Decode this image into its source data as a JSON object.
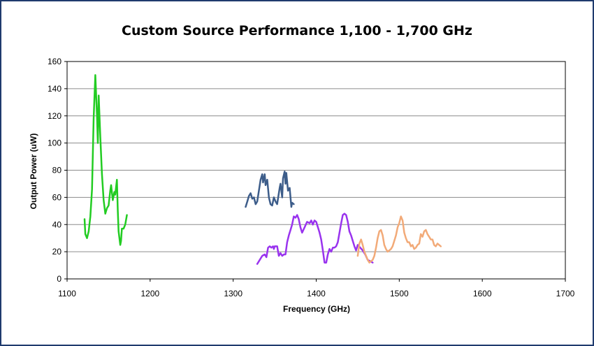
{
  "chart_data": {
    "type": "line",
    "title": "Custom Source Performance 1,100 - 1,700 GHz",
    "xlabel": "Frequency (GHz)",
    "ylabel": "Output Power (uW)",
    "xlim": [
      1100,
      1700
    ],
    "ylim": [
      0,
      160
    ],
    "xticks": [
      "1100",
      "1200",
      "1300",
      "1400",
      "1500",
      "1600",
      "1700"
    ],
    "yticks": [
      "0",
      "20",
      "40",
      "60",
      "80",
      "100",
      "120",
      "140",
      "160"
    ],
    "grid": "horizontal",
    "legend": "none",
    "series": [
      {
        "color": "#22cc22",
        "x": [
          1121,
          1122,
          1124,
          1126,
          1128,
          1130,
          1132,
          1134,
          1136,
          1137,
          1138,
          1140,
          1142,
          1144,
          1146,
          1148,
          1150,
          1152,
          1153,
          1155,
          1157,
          1158,
          1160,
          1161,
          1162,
          1164,
          1165,
          1166,
          1168,
          1170,
          1172
        ],
        "y": [
          44,
          33,
          30,
          35,
          46,
          66,
          118,
          150,
          120,
          100,
          135,
          105,
          77,
          58,
          48,
          52,
          54,
          65,
          69,
          58,
          64,
          62,
          73,
          51,
          35,
          25,
          28,
          37,
          37,
          40,
          47
        ]
      },
      {
        "color": "#3d5d8a",
        "x": [
          1315,
          1317,
          1319,
          1321,
          1323,
          1325,
          1327,
          1329,
          1331,
          1333,
          1335,
          1336,
          1338,
          1339,
          1341,
          1343,
          1345,
          1347,
          1349,
          1351,
          1353,
          1355,
          1356,
          1357,
          1359,
          1360,
          1362,
          1363,
          1364,
          1366,
          1368,
          1370,
          1371,
          1373
        ],
        "y": [
          53,
          57,
          61,
          63,
          59,
          60,
          55,
          57,
          65,
          73,
          77,
          71,
          77,
          69,
          73,
          60,
          55,
          54,
          60,
          57,
          55,
          63,
          67,
          70,
          60,
          74,
          79,
          70,
          78,
          65,
          67,
          53,
          56,
          55
        ]
      },
      {
        "color": "#9933ee",
        "x": [
          1329,
          1332,
          1335,
          1338,
          1340,
          1342,
          1344,
          1346,
          1348,
          1349,
          1350,
          1351,
          1353,
          1355,
          1357,
          1359,
          1361,
          1363,
          1365,
          1367,
          1369,
          1371,
          1373,
          1375,
          1377,
          1379,
          1381,
          1383,
          1386,
          1389,
          1392,
          1394,
          1396,
          1398,
          1400,
          1402,
          1404,
          1406,
          1408,
          1410,
          1412,
          1414,
          1416,
          1418,
          1420,
          1422,
          1424,
          1426,
          1428,
          1430,
          1432,
          1434,
          1436,
          1438,
          1440,
          1442,
          1444,
          1446,
          1448,
          1450,
          1453,
          1456,
          1459,
          1462,
          1465,
          1468
        ],
        "y": [
          11,
          14,
          17,
          18,
          16,
          23,
          24,
          23,
          24,
          22,
          24,
          24,
          24,
          17,
          19,
          17,
          18,
          18,
          27,
          32,
          36,
          40,
          46,
          45,
          47,
          44,
          38,
          34,
          38,
          42,
          41,
          43,
          40,
          43,
          42,
          38,
          34,
          29,
          21,
          12,
          12,
          18,
          22,
          20,
          23,
          23,
          24,
          27,
          34,
          41,
          47,
          48,
          47,
          42,
          35,
          32,
          28,
          24,
          21,
          25,
          23,
          21,
          18,
          14,
          13,
          12
        ]
      },
      {
        "color": "#f2aa78",
        "x": [
          1450,
          1452,
          1454,
          1456,
          1458,
          1460,
          1462,
          1464,
          1466,
          1468,
          1470,
          1472,
          1474,
          1476,
          1478,
          1480,
          1482,
          1484,
          1486,
          1488,
          1490,
          1492,
          1494,
          1496,
          1498,
          1500,
          1502,
          1504,
          1506,
          1508,
          1510,
          1512,
          1514,
          1516,
          1518,
          1520,
          1522,
          1524,
          1526,
          1528,
          1530,
          1532,
          1534,
          1536,
          1538,
          1540,
          1542,
          1544,
          1546,
          1548,
          1550
        ],
        "y": [
          17,
          26,
          29,
          25,
          20,
          17,
          14,
          12,
          13,
          14,
          17,
          23,
          30,
          35,
          36,
          32,
          25,
          22,
          20,
          21,
          22,
          24,
          28,
          32,
          38,
          41,
          46,
          43,
          34,
          30,
          27,
          27,
          24,
          25,
          22,
          23,
          25,
          26,
          33,
          31,
          35,
          36,
          33,
          31,
          29,
          29,
          25,
          24,
          26,
          25,
          24
        ]
      }
    ]
  }
}
